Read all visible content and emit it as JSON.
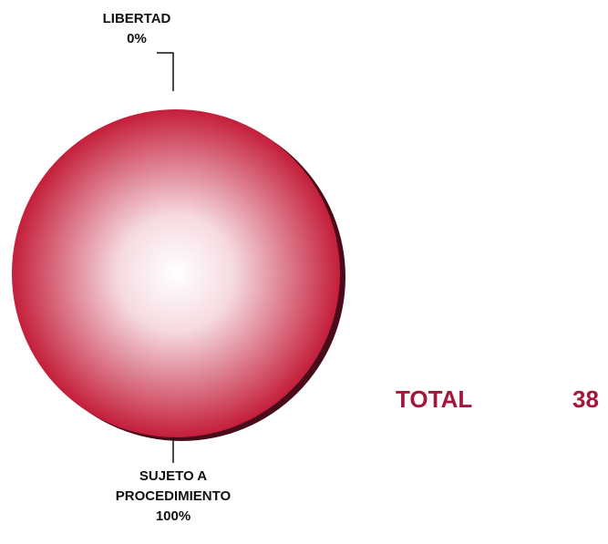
{
  "chart_data": {
    "type": "pie",
    "categories": [
      "LIBERTAD",
      "SUJETO A PROCEDIMIENTO"
    ],
    "values": [
      0,
      100
    ],
    "value_labels": [
      "0%",
      "100%"
    ],
    "colors": [
      "#c41e3a",
      "#c41e3a"
    ],
    "total_label": "TOTAL",
    "total": 38
  }
}
